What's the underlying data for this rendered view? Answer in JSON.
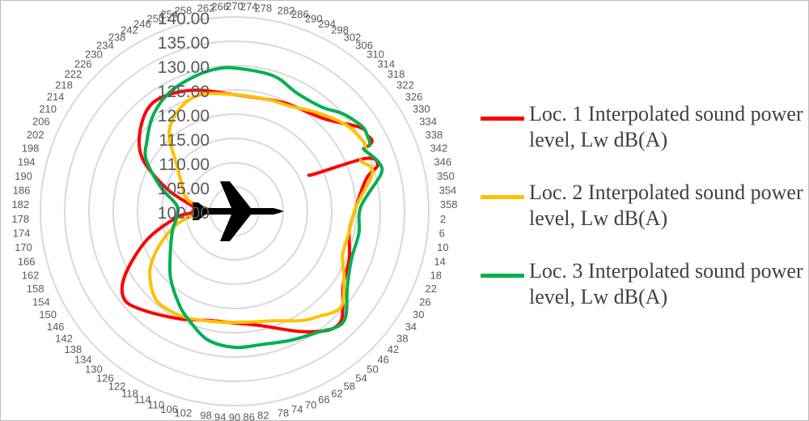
{
  "chart_data": {
    "type": "radar",
    "title": "",
    "angle_ticks": [
      "270",
      "274",
      "278",
      "282",
      "286",
      "290",
      "294",
      "298",
      "302",
      "306",
      "310",
      "314",
      "318",
      "322",
      "326",
      "330",
      "334",
      "338",
      "342",
      "346",
      "350",
      "354",
      "358",
      "2",
      "6",
      "10",
      "14",
      "18",
      "22",
      "26",
      "30",
      "34",
      "38",
      "42",
      "46",
      "50",
      "54",
      "58",
      "62",
      "66",
      "70",
      "74",
      "78",
      "82",
      "86",
      "90",
      "94",
      "98",
      "102",
      "106",
      "110",
      "114",
      "118",
      "122",
      "126",
      "130",
      "134",
      "138",
      "142",
      "146",
      "150",
      "154",
      "158",
      "162",
      "166",
      "170",
      "174",
      "178",
      "182",
      "186",
      "190",
      "194",
      "198",
      "202",
      "206",
      "210",
      "214",
      "218",
      "222",
      "226",
      "230",
      "234",
      "238",
      "242",
      "246",
      "250",
      "254",
      "258",
      "262",
      "266"
    ],
    "radial_ticks": [
      "100.00",
      "105.00",
      "110.00",
      "115.00",
      "120.00",
      "125.00",
      "130.00",
      "135.00",
      "140.00"
    ],
    "rlim": [
      100,
      140
    ],
    "grid": true,
    "legend_position": "right",
    "series": [
      {
        "name": "Loc. 1 Interpolated sound power level, Lw dB(A)",
        "color": "#ff0000",
        "points": [
          [
            334,
            117
          ],
          [
            338,
            129
          ],
          [
            342,
            131
          ],
          [
            346,
            128
          ],
          [
            358,
            125
          ],
          [
            10,
            124
          ],
          [
            22,
            125.5
          ],
          [
            34,
            127
          ],
          [
            42,
            130
          ],
          [
            46,
            131.5
          ],
          [
            50,
            131.5
          ],
          [
            54,
            130.5
          ],
          [
            62,
            128
          ],
          [
            78,
            124
          ],
          [
            90,
            123
          ],
          [
            102,
            123
          ],
          [
            118,
            125
          ],
          [
            134,
            128
          ],
          [
            142,
            129
          ],
          [
            150,
            126
          ],
          [
            162,
            119
          ],
          [
            174,
            112
          ],
          [
            178,
            109
          ],
          [
            186,
            108.5
          ],
          [
            198,
            114.5
          ],
          [
            210,
            122
          ],
          [
            222,
            126
          ],
          [
            234,
            128
          ],
          [
            250,
            126.5
          ],
          [
            270,
            124
          ],
          [
            294,
            124.5
          ],
          [
            314,
            126.5
          ],
          [
            326,
            131
          ],
          [
            330,
            131.5
          ],
          [
            334,
            130.5
          ]
        ]
      },
      {
        "name": "Loc. 2 Interpolated sound power level, Lw dB(A)",
        "color": "#ffc000",
        "points": [
          [
            338,
            128
          ],
          [
            342,
            129.5
          ],
          [
            346,
            129
          ],
          [
            358,
            125
          ],
          [
            10,
            124
          ],
          [
            22,
            124
          ],
          [
            30,
            126
          ],
          [
            38,
            128.5
          ],
          [
            42,
            129.5
          ],
          [
            46,
            129
          ],
          [
            50,
            128
          ],
          [
            58,
            126.5
          ],
          [
            70,
            124
          ],
          [
            82,
            123
          ],
          [
            98,
            123
          ],
          [
            114,
            124
          ],
          [
            126,
            124.5
          ],
          [
            134,
            124
          ],
          [
            146,
            121
          ],
          [
            158,
            116
          ],
          [
            170,
            111
          ],
          [
            178,
            106
          ],
          [
            182,
            103
          ],
          [
            186,
            106
          ],
          [
            194,
            110
          ],
          [
            206,
            112
          ],
          [
            218,
            115
          ],
          [
            230,
            121
          ],
          [
            242,
            124
          ],
          [
            254,
            125
          ],
          [
            270,
            124
          ],
          [
            286,
            124
          ],
          [
            298,
            124.5
          ],
          [
            310,
            126.5
          ],
          [
            322,
            129
          ],
          [
            330,
            130
          ],
          [
            334,
            130
          ]
        ]
      },
      {
        "name": "Loc. 3 Interpolated sound power level, Lw dB(A)",
        "color": "#00b050",
        "points": [
          [
            334,
            129.5
          ],
          [
            338,
            130.5
          ],
          [
            342,
            131.5
          ],
          [
            346,
            131
          ],
          [
            358,
            126
          ],
          [
            10,
            126
          ],
          [
            22,
            126
          ],
          [
            34,
            128
          ],
          [
            42,
            131
          ],
          [
            46,
            132
          ],
          [
            50,
            131.5
          ],
          [
            54,
            130.5
          ],
          [
            66,
            129
          ],
          [
            78,
            128
          ],
          [
            90,
            128
          ],
          [
            102,
            127
          ],
          [
            114,
            124
          ],
          [
            122,
            122
          ],
          [
            134,
            119
          ],
          [
            146,
            116
          ],
          [
            158,
            114
          ],
          [
            166,
            113
          ],
          [
            174,
            112
          ],
          [
            186,
            112
          ],
          [
            198,
            116
          ],
          [
            210,
            121
          ],
          [
            218,
            123
          ],
          [
            230,
            126
          ],
          [
            242,
            128
          ],
          [
            254,
            129
          ],
          [
            262,
            129.5
          ],
          [
            270,
            129.5
          ],
          [
            286,
            129
          ],
          [
            298,
            127.5
          ],
          [
            310,
            128
          ],
          [
            318,
            130
          ],
          [
            326,
            131.5
          ],
          [
            330,
            131.5
          ],
          [
            334,
            131
          ]
        ]
      }
    ]
  },
  "legend": {
    "items": [
      {
        "label": "Loc. 1 Interpolated sound power level, Lw dB(A)",
        "color": "#ff0000"
      },
      {
        "label": "Loc. 2 Interpolated sound power level, Lw dB(A)",
        "color": "#ffc000"
      },
      {
        "label": "Loc. 3 Interpolated sound power level, Lw dB(A)",
        "color": "#00b050"
      }
    ]
  },
  "icons": {
    "center": "airplane-icon"
  }
}
